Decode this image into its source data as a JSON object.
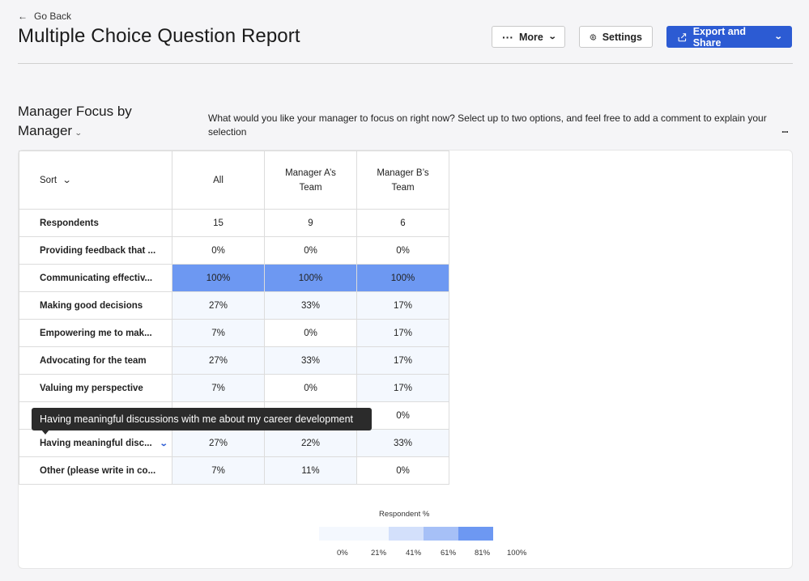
{
  "header": {
    "go_back": "Go Back",
    "title": "Multiple Choice Question Report",
    "more_label": "More",
    "settings_label": "Settings",
    "export_label": "Export and Share"
  },
  "section": {
    "title_line1": "Manager Focus by",
    "title_line2": "Manager",
    "question": "What would you like your manager to focus on right now? Select up to two options, and feel free to add a comment to explain your selection",
    "more_ellipsis": "..."
  },
  "table": {
    "sort_label": "Sort",
    "columns": [
      "All",
      "Manager A's Team",
      "Manager B's Team"
    ],
    "rows": [
      {
        "label": "Respondents",
        "values": [
          "15",
          "9",
          "6"
        ],
        "pcts": [
          null,
          null,
          null
        ]
      },
      {
        "label": "Providing feedback that ...",
        "values": [
          "0%",
          "0%",
          "0%"
        ],
        "pcts": [
          0,
          0,
          0
        ]
      },
      {
        "label": "Communicating effectiv...",
        "values": [
          "100%",
          "100%",
          "100%"
        ],
        "pcts": [
          100,
          100,
          100
        ]
      },
      {
        "label": "Making good decisions",
        "values": [
          "27%",
          "33%",
          "17%"
        ],
        "pcts": [
          27,
          33,
          17
        ]
      },
      {
        "label": "Empowering me to mak...",
        "values": [
          "7%",
          "0%",
          "17%"
        ],
        "pcts": [
          7,
          0,
          17
        ]
      },
      {
        "label": "Advocating for the team",
        "values": [
          "27%",
          "33%",
          "17%"
        ],
        "pcts": [
          27,
          33,
          17
        ]
      },
      {
        "label": "Valuing my perspective",
        "values": [
          "7%",
          "0%",
          "17%"
        ],
        "pcts": [
          7,
          0,
          17
        ]
      },
      {
        "label": "",
        "values": [
          "",
          "",
          "0%"
        ],
        "pcts": [
          0,
          0,
          0
        ]
      },
      {
        "label": "Having meaningful disc...",
        "values": [
          "27%",
          "22%",
          "33%"
        ],
        "pcts": [
          27,
          22,
          33
        ]
      },
      {
        "label": "Other (please write in co...",
        "values": [
          "7%",
          "11%",
          "0%"
        ],
        "pcts": [
          7,
          11,
          0
        ]
      }
    ]
  },
  "legend": {
    "title": "Respondent %",
    "ticks": [
      "0%",
      "21%",
      "41%",
      "61%",
      "81%",
      "100%"
    ],
    "colors": [
      "#f4f8fe",
      "#f4f8fe",
      "#d3e0fb",
      "#a6c0f7",
      "#6d98f2"
    ]
  },
  "tooltip": {
    "text": "Having meaningful discussions with me about my career development"
  },
  "colors": {
    "accent": "#2c5bd3",
    "scale_low": "#f4f8fe",
    "scale_mid_low": "#d3e0fb",
    "scale_mid_high": "#a6c0f7",
    "scale_high": "#6d98f2"
  }
}
